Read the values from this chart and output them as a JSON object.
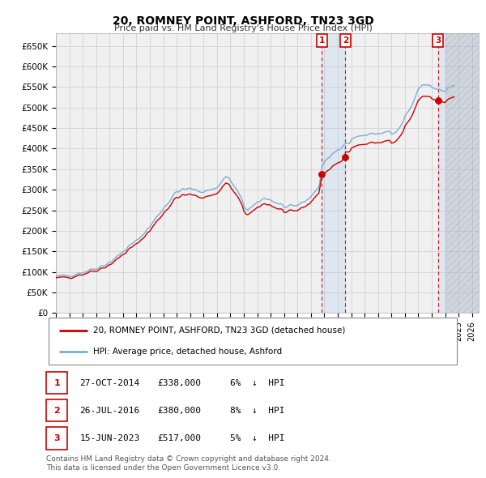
{
  "title": "20, ROMNEY POINT, ASHFORD, TN23 3GD",
  "subtitle": "Price paid vs. HM Land Registry's House Price Index (HPI)",
  "ylim_max": 680000,
  "yticks": [
    0,
    50000,
    100000,
    150000,
    200000,
    250000,
    300000,
    350000,
    400000,
    450000,
    500000,
    550000,
    600000,
    650000
  ],
  "ytick_labels": [
    "£0",
    "£50K",
    "£100K",
    "£150K",
    "£200K",
    "£250K",
    "£300K",
    "£350K",
    "£400K",
    "£450K",
    "£500K",
    "£550K",
    "£600K",
    "£650K"
  ],
  "xlim_start": 1995.0,
  "xlim_end": 2026.5,
  "xtick_years": [
    1995,
    1996,
    1997,
    1998,
    1999,
    2000,
    2001,
    2002,
    2003,
    2004,
    2005,
    2006,
    2007,
    2008,
    2009,
    2010,
    2011,
    2012,
    2013,
    2014,
    2015,
    2016,
    2017,
    2018,
    2019,
    2020,
    2021,
    2022,
    2023,
    2024,
    2025,
    2026
  ],
  "hpi_color": "#7aaed4",
  "price_color": "#cc0000",
  "background_color": "#f0f0f0",
  "grid_color": "#cccccc",
  "legend_label_price": "20, ROMNEY POINT, ASHFORD, TN23 3GD (detached house)",
  "legend_label_hpi": "HPI: Average price, detached house, Ashford",
  "transactions": [
    {
      "id": 1,
      "date": "27-OCT-2014",
      "price": 338000,
      "pct": "6%",
      "dir": "↓",
      "year": 2014.82
    },
    {
      "id": 2,
      "date": "26-JUL-2016",
      "price": 380000,
      "pct": "8%",
      "dir": "↓",
      "year": 2016.57
    },
    {
      "id": 3,
      "date": "15-JUN-2023",
      "price": 517000,
      "pct": "5%",
      "dir": "↓",
      "year": 2023.46
    }
  ],
  "footer1": "Contains HM Land Registry data © Crown copyright and database right 2024.",
  "footer2": "This data is licensed under the Open Government Licence v3.0."
}
